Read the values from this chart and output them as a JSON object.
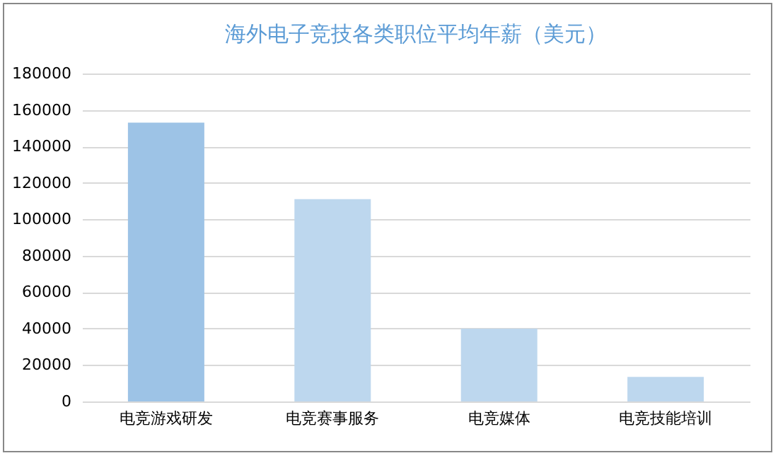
{
  "chart_data": {
    "type": "bar",
    "title": "海外电子竞技各类职位平均年薪（美元）",
    "categories": [
      "电竞游戏研发",
      "电竞赛事服务",
      "电竞媒体",
      "电竞技能培训"
    ],
    "values": [
      153000,
      111000,
      40000,
      13500
    ],
    "colors": [
      "#9dc3e6",
      "#bdd7ee",
      "#bdd7ee",
      "#bdd7ee"
    ],
    "ylim": [
      0,
      180000
    ],
    "yticks": [
      0,
      20000,
      40000,
      60000,
      80000,
      100000,
      120000,
      140000,
      160000,
      180000
    ],
    "grid": "y"
  }
}
